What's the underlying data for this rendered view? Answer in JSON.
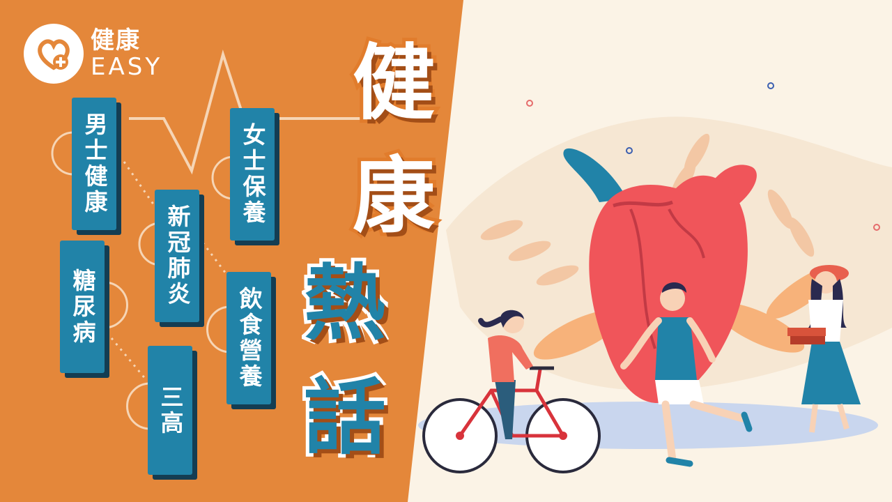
{
  "brand": {
    "name_top": "健康",
    "name_bottom": "EASY"
  },
  "topics": {
    "mens_health": "男士健康",
    "womens_care": "女士保養",
    "covid": "新冠肺炎",
    "diabetes": "糖尿病",
    "diet_nutrition": "飲食營養",
    "three_highs": "三高"
  },
  "headline": {
    "char_1": "健",
    "char_2": "康",
    "char_3": "熱",
    "char_4": "話"
  },
  "colors": {
    "orange": "#e4873a",
    "blue": "#2183a8",
    "cream": "#fbf3e6",
    "heart_red": "#f0555a",
    "navy_shadow": "#143d52"
  },
  "icons": [
    "health-logo-icon",
    "heart-illustration",
    "cyclist-illustration",
    "runner-illustration",
    "woman-holding-books-illustration",
    "leaf-decoration-icon"
  ]
}
